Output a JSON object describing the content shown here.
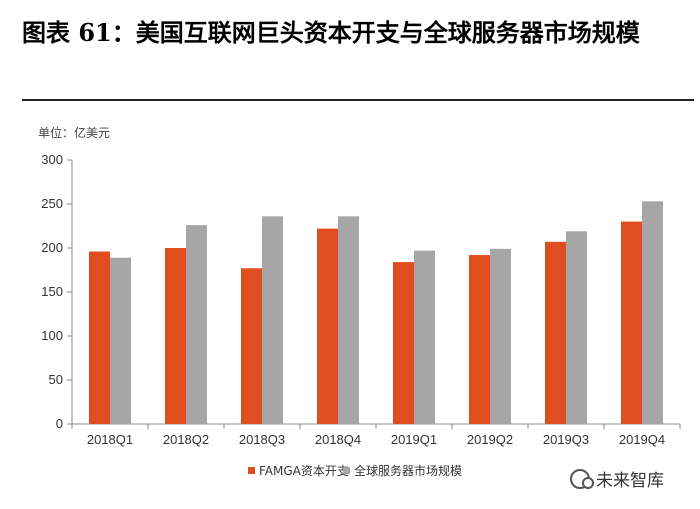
{
  "header": {
    "title": "图表 61：美国互联网巨头资本开支与全球服务器市场规模",
    "unit": "单位：亿美元"
  },
  "watermark": {
    "text": "未来智库",
    "icon": "wechat-icon"
  },
  "colors": {
    "series1": "#e04e1f",
    "series2": "#a6a6a6",
    "axis": "#888888"
  },
  "chart_data": {
    "type": "bar",
    "title": "",
    "xlabel": "",
    "ylabel": "",
    "ylim": [
      0,
      300
    ],
    "yticks": [
      0,
      50,
      100,
      150,
      200,
      250,
      300
    ],
    "grid": false,
    "legend": "bottom",
    "categories": [
      "2018Q1",
      "2018Q2",
      "2018Q3",
      "2018Q4",
      "2019Q1",
      "2019Q2",
      "2019Q3",
      "2019Q4"
    ],
    "series": [
      {
        "name": "FAMGA资本开支",
        "values": [
          196,
          200,
          177,
          222,
          184,
          192,
          207,
          230
        ]
      },
      {
        "name": "全球服务器市场规模",
        "values": [
          189,
          226,
          236,
          236,
          197,
          199,
          219,
          253
        ]
      }
    ]
  }
}
